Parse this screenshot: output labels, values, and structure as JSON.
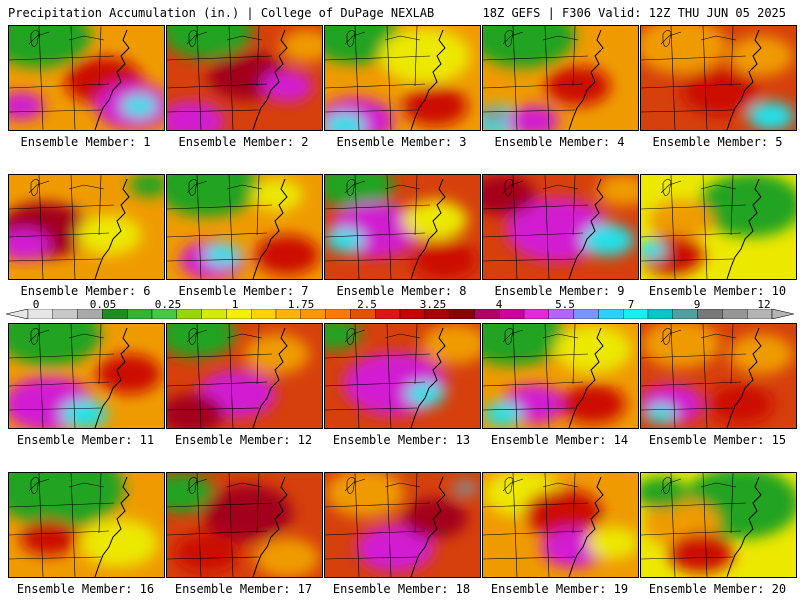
{
  "header": {
    "title_left": "Precipitation Accumulation (in.) | College of DuPage NEXLAB",
    "title_right": "18Z GEFS | F306 Valid: 12Z THU JUN 05 2025"
  },
  "member_caption_prefix": "Ensemble Member: ",
  "members": [
    {
      "id": "1",
      "bg": "#ef9b00",
      "blobs": [
        {
          "c": "#21a321",
          "x": 30,
          "y": 10,
          "r": 40
        },
        {
          "c": "#cc0a06",
          "x": 95,
          "y": 55,
          "r": 30
        },
        {
          "c": "#d11ed1",
          "x": 125,
          "y": 80,
          "r": 30
        },
        {
          "c": "#22e1e8",
          "x": 130,
          "y": 80,
          "r": 14
        },
        {
          "c": "#d11ed1",
          "x": 12,
          "y": 80,
          "r": 18
        }
      ]
    },
    {
      "id": "2",
      "bg": "#d6400c",
      "blobs": [
        {
          "c": "#21a321",
          "x": 40,
          "y": 5,
          "r": 35
        },
        {
          "c": "#a3001e",
          "x": 80,
          "y": 50,
          "r": 30
        },
        {
          "c": "#d11ed1",
          "x": 120,
          "y": 60,
          "r": 20
        },
        {
          "c": "#d11ed1",
          "x": 25,
          "y": 95,
          "r": 25
        },
        {
          "c": "#ef9b00",
          "x": 140,
          "y": 20,
          "r": 20
        }
      ]
    },
    {
      "id": "3",
      "bg": "#ef9b00",
      "blobs": [
        {
          "c": "#21a321",
          "x": 30,
          "y": 10,
          "r": 35
        },
        {
          "c": "#ece800",
          "x": 100,
          "y": 30,
          "r": 35
        },
        {
          "c": "#d11ed1",
          "x": 30,
          "y": 95,
          "r": 30
        },
        {
          "c": "#22e1e8",
          "x": 20,
          "y": 100,
          "r": 16
        },
        {
          "c": "#cc0a06",
          "x": 110,
          "y": 80,
          "r": 25
        }
      ]
    },
    {
      "id": "4",
      "bg": "#ef9b00",
      "blobs": [
        {
          "c": "#21a321",
          "x": 40,
          "y": 10,
          "r": 40
        },
        {
          "c": "#cc0a06",
          "x": 95,
          "y": 60,
          "r": 25
        },
        {
          "c": "#22e1e8",
          "x": 15,
          "y": 95,
          "r": 20
        },
        {
          "c": "#d11ed1",
          "x": 50,
          "y": 95,
          "r": 20
        },
        {
          "c": "#8a8a8a",
          "x": 10,
          "y": 90,
          "r": 10
        }
      ]
    },
    {
      "id": "5",
      "bg": "#d6400c",
      "blobs": [
        {
          "c": "#ef9b00",
          "x": 40,
          "y": 20,
          "r": 35
        },
        {
          "c": "#cc0a06",
          "x": 80,
          "y": 65,
          "r": 30
        },
        {
          "c": "#22e1e8",
          "x": 130,
          "y": 90,
          "r": 18
        },
        {
          "c": "#ef9b00",
          "x": 120,
          "y": 30,
          "r": 25
        }
      ]
    },
    {
      "id": "6",
      "bg": "#ef9b00",
      "blobs": [
        {
          "c": "#a3001e",
          "x": 35,
          "y": 55,
          "r": 35
        },
        {
          "c": "#d11ed1",
          "x": 15,
          "y": 70,
          "r": 20
        },
        {
          "c": "#ece800",
          "x": 100,
          "y": 60,
          "r": 25
        },
        {
          "c": "#21a321",
          "x": 140,
          "y": 10,
          "r": 15
        }
      ]
    },
    {
      "id": "7",
      "bg": "#ef9b00",
      "blobs": [
        {
          "c": "#21a321",
          "x": 40,
          "y": 10,
          "r": 40
        },
        {
          "c": "#d11ed1",
          "x": 45,
          "y": 85,
          "r": 25
        },
        {
          "c": "#22e1e8",
          "x": 55,
          "y": 80,
          "r": 14
        },
        {
          "c": "#ece800",
          "x": 110,
          "y": 20,
          "r": 20
        },
        {
          "c": "#cc0a06",
          "x": 120,
          "y": 80,
          "r": 25
        }
      ]
    },
    {
      "id": "8",
      "bg": "#d6400c",
      "blobs": [
        {
          "c": "#21a321",
          "x": 30,
          "y": 10,
          "r": 30
        },
        {
          "c": "#d11ed1",
          "x": 50,
          "y": 55,
          "r": 35
        },
        {
          "c": "#22e1e8",
          "x": 20,
          "y": 65,
          "r": 15
        },
        {
          "c": "#ece800",
          "x": 110,
          "y": 45,
          "r": 25
        },
        {
          "c": "#cc0a06",
          "x": 120,
          "y": 85,
          "r": 25
        }
      ]
    },
    {
      "id": "9",
      "bg": "#d6400c",
      "blobs": [
        {
          "c": "#d11ed1",
          "x": 75,
          "y": 55,
          "r": 40
        },
        {
          "c": "#22e1e8",
          "x": 125,
          "y": 65,
          "r": 20
        },
        {
          "c": "#ef9b00",
          "x": 140,
          "y": 15,
          "r": 20
        },
        {
          "c": "#a3001e",
          "x": 20,
          "y": 20,
          "r": 25
        }
      ]
    },
    {
      "id": "10",
      "bg": "#ece800",
      "blobs": [
        {
          "c": "#21a321",
          "x": 110,
          "y": 30,
          "r": 40
        },
        {
          "c": "#ef9b00",
          "x": 40,
          "y": 45,
          "r": 25
        },
        {
          "c": "#cc0a06",
          "x": 30,
          "y": 80,
          "r": 25
        },
        {
          "c": "#22e1e8",
          "x": 10,
          "y": 75,
          "r": 12
        }
      ]
    },
    {
      "id": "11",
      "bg": "#ef9b00",
      "blobs": [
        {
          "c": "#21a321",
          "x": 40,
          "y": 10,
          "r": 40
        },
        {
          "c": "#d11ed1",
          "x": 40,
          "y": 80,
          "r": 35
        },
        {
          "c": "#22e1e8",
          "x": 75,
          "y": 90,
          "r": 18
        },
        {
          "c": "#cc0a06",
          "x": 120,
          "y": 50,
          "r": 25
        }
      ]
    },
    {
      "id": "12",
      "bg": "#d6400c",
      "blobs": [
        {
          "c": "#21a321",
          "x": 30,
          "y": 10,
          "r": 30
        },
        {
          "c": "#ef9b00",
          "x": 110,
          "y": 30,
          "r": 25
        },
        {
          "c": "#d11ed1",
          "x": 70,
          "y": 70,
          "r": 30
        },
        {
          "c": "#a3001e",
          "x": 25,
          "y": 90,
          "r": 25
        }
      ]
    },
    {
      "id": "13",
      "bg": "#d6400c",
      "blobs": [
        {
          "c": "#21a321",
          "x": 10,
          "y": 10,
          "r": 20
        },
        {
          "c": "#d11ed1",
          "x": 70,
          "y": 60,
          "r": 40
        },
        {
          "c": "#22e1e8",
          "x": 100,
          "y": 70,
          "r": 15
        },
        {
          "c": "#ef9b00",
          "x": 130,
          "y": 20,
          "r": 25
        }
      ]
    },
    {
      "id": "14",
      "bg": "#ef9b00",
      "blobs": [
        {
          "c": "#21a321",
          "x": 30,
          "y": 10,
          "r": 40
        },
        {
          "c": "#d11ed1",
          "x": 50,
          "y": 80,
          "r": 25
        },
        {
          "c": "#22e1e8",
          "x": 20,
          "y": 90,
          "r": 15
        },
        {
          "c": "#ece800",
          "x": 110,
          "y": 25,
          "r": 30
        },
        {
          "c": "#cc0a06",
          "x": 110,
          "y": 80,
          "r": 25
        }
      ]
    },
    {
      "id": "15",
      "bg": "#d6400c",
      "blobs": [
        {
          "c": "#ef9b00",
          "x": 40,
          "y": 20,
          "r": 30
        },
        {
          "c": "#d11ed1",
          "x": 30,
          "y": 80,
          "r": 25
        },
        {
          "c": "#22e1e8",
          "x": 20,
          "y": 90,
          "r": 12
        },
        {
          "c": "#ef9b00",
          "x": 120,
          "y": 30,
          "r": 25
        },
        {
          "c": "#cc0a06",
          "x": 100,
          "y": 80,
          "r": 25
        }
      ]
    },
    {
      "id": "16",
      "bg": "#ef9b00",
      "blobs": [
        {
          "c": "#21a321",
          "x": 50,
          "y": 15,
          "r": 50
        },
        {
          "c": "#cc0a06",
          "x": 40,
          "y": 65,
          "r": 22
        },
        {
          "c": "#ece800",
          "x": 110,
          "y": 70,
          "r": 30
        }
      ]
    },
    {
      "id": "17",
      "bg": "#d6400c",
      "blobs": [
        {
          "c": "#21a321",
          "x": 15,
          "y": 20,
          "r": 25
        },
        {
          "c": "#a3001e",
          "x": 80,
          "y": 40,
          "r": 35
        },
        {
          "c": "#ef9b00",
          "x": 120,
          "y": 85,
          "r": 25
        },
        {
          "c": "#cc0a06",
          "x": 40,
          "y": 80,
          "r": 25
        }
      ]
    },
    {
      "id": "18",
      "bg": "#d6400c",
      "blobs": [
        {
          "c": "#ef9b00",
          "x": 40,
          "y": 20,
          "r": 30
        },
        {
          "c": "#d11ed1",
          "x": 70,
          "y": 75,
          "r": 30
        },
        {
          "c": "#8a8a8a",
          "x": 140,
          "y": 15,
          "r": 10
        },
        {
          "c": "#a3001e",
          "x": 110,
          "y": 45,
          "r": 25
        }
      ]
    },
    {
      "id": "19",
      "bg": "#ef9b00",
      "blobs": [
        {
          "c": "#ece800",
          "x": 40,
          "y": 20,
          "r": 30
        },
        {
          "c": "#cc0a06",
          "x": 80,
          "y": 40,
          "r": 30
        },
        {
          "c": "#d11ed1",
          "x": 90,
          "y": 75,
          "r": 25
        },
        {
          "c": "#ece800",
          "x": 130,
          "y": 70,
          "r": 20
        }
      ]
    },
    {
      "id": "20",
      "bg": "#ece800",
      "blobs": [
        {
          "c": "#21a321",
          "x": 100,
          "y": 30,
          "r": 45
        },
        {
          "c": "#ef9b00",
          "x": 40,
          "y": 50,
          "r": 30
        },
        {
          "c": "#cc0a06",
          "x": 60,
          "y": 80,
          "r": 25
        },
        {
          "c": "#21a321",
          "x": 20,
          "y": 20,
          "r": 20
        }
      ]
    }
  ],
  "legend": {
    "labels": [
      "0",
      "0.05",
      "0.25",
      "1",
      "1.75",
      "2.5",
      "3.25",
      "4",
      "5.5",
      "7",
      "9",
      "12"
    ],
    "colors": [
      "#e6e6e6",
      "#c8c8c8",
      "#a9a9a9",
      "#1e8c1e",
      "#32b432",
      "#46c846",
      "#96d700",
      "#d2eb00",
      "#f5f000",
      "#ffd200",
      "#ffb400",
      "#ff9600",
      "#ff7800",
      "#e65000",
      "#e01414",
      "#c80000",
      "#aa0000",
      "#8c0000",
      "#b40064",
      "#d2009b",
      "#e628dc",
      "#b464ff",
      "#7896ff",
      "#28d2ff",
      "#14f0f0",
      "#00c8c8",
      "#50a0a0",
      "#787878",
      "#969696",
      "#b4b4b4"
    ]
  }
}
